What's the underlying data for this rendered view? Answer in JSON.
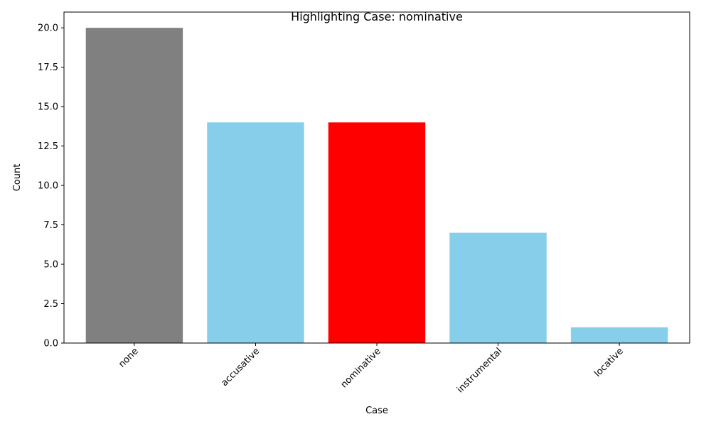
{
  "chart_data": {
    "type": "bar",
    "title": "Highlighting Case: nominative",
    "xlabel": "Case",
    "ylabel": "Count",
    "categories": [
      "none",
      "accusative",
      "nominative",
      "instrumental",
      "locative"
    ],
    "values": [
      20,
      14,
      14,
      7,
      1
    ],
    "bar_colors": [
      "#808080",
      "#87ceeb",
      "#ff0000",
      "#87ceeb",
      "#87ceeb"
    ],
    "ylim": [
      0,
      21
    ],
    "yticks": [
      "0.0",
      "2.5",
      "5.0",
      "7.5",
      "10.0",
      "12.5",
      "15.0",
      "17.5",
      "20.0"
    ],
    "ytick_values": [
      0,
      2.5,
      5,
      7.5,
      10,
      12.5,
      15,
      17.5,
      20
    ],
    "xtick_rotation_deg": 45,
    "grid": false,
    "legend": "none"
  }
}
